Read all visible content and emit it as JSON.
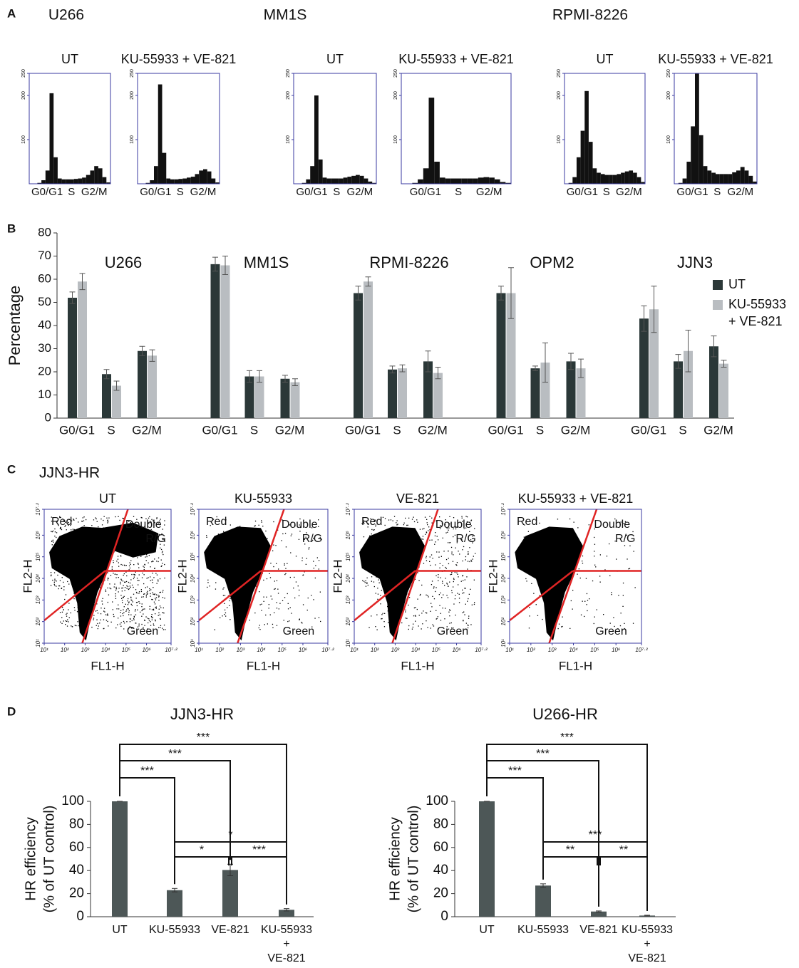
{
  "chart_data": [
    {
      "type": "histogram",
      "panel": "A",
      "bins": [
        0,
        12,
        24,
        36,
        48,
        60,
        72,
        84,
        96,
        108,
        120,
        132,
        144,
        156,
        168,
        180,
        192,
        204,
        216,
        228,
        240
      ],
      "ylim": [
        0,
        250
      ],
      "yticks": [
        100,
        200,
        250
      ],
      "x_labels": [
        "G0/G1",
        "S",
        "G2/M"
      ],
      "color": "#111111",
      "groups": [
        {
          "title": "U266",
          "plots": [
            {
              "name": "UT",
              "values": [
                0,
                0,
                2,
                8,
                30,
                205,
                60,
                12,
                10,
                10,
                10,
                11,
                12,
                14,
                20,
                30,
                40,
                35,
                15,
                3
              ]
            },
            {
              "name": "KU-55933 + VE-821",
              "values": [
                0,
                0,
                2,
                8,
                40,
                225,
                70,
                12,
                10,
                10,
                11,
                12,
                14,
                16,
                22,
                30,
                33,
                28,
                12,
                3
              ]
            }
          ]
        },
        {
          "title": "MM1S",
          "plots": [
            {
              "name": "UT",
              "values": [
                0,
                0,
                2,
                10,
                40,
                200,
                55,
                14,
                12,
                12,
                12,
                12,
                14,
                16,
                18,
                20,
                18,
                12,
                5,
                2
              ]
            },
            {
              "name": "KU-55933 + VE-821",
              "values": [
                0,
                0,
                2,
                10,
                35,
                195,
                50,
                14,
                12,
                12,
                12,
                12,
                12,
                12,
                14,
                15,
                14,
                10,
                4,
                2
              ]
            }
          ]
        },
        {
          "title": "RPMI-8226",
          "plots": [
            {
              "name": "UT",
              "values": [
                0,
                2,
                15,
                60,
                120,
                210,
                95,
                35,
                25,
                22,
                20,
                20,
                20,
                22,
                25,
                28,
                30,
                25,
                15,
                4
              ]
            },
            {
              "name": "KU-55933 + VE-821",
              "values": [
                0,
                2,
                12,
                50,
                130,
                250,
                110,
                40,
                30,
                25,
                22,
                22,
                22,
                22,
                26,
                30,
                38,
                30,
                18,
                5
              ]
            }
          ]
        }
      ]
    },
    {
      "type": "bar",
      "panel": "B",
      "ylabel": "Percentage",
      "ylim": [
        0,
        80
      ],
      "yticks": [
        0,
        10,
        20,
        30,
        40,
        50,
        60,
        70,
        80
      ],
      "groups": [
        "U266",
        "MM1S",
        "RPMI-8226",
        "OPM2",
        "JJN3"
      ],
      "categories": [
        "G0/G1",
        "S",
        "G2/M",
        "G0/G1",
        "S",
        "G2/M",
        "G0/G1",
        "S",
        "G2/M",
        "G0/G1",
        "S",
        "G2/M",
        "G0/G1",
        "S",
        "G2/M"
      ],
      "legend": "right",
      "series": [
        {
          "name": "UT",
          "color": "#2b3838",
          "values": [
            52,
            19,
            29,
            66.5,
            18,
            17,
            54,
            21,
            24.5,
            54,
            21.5,
            24.5,
            43,
            24.5,
            31
          ],
          "errors": [
            2.5,
            2,
            2,
            3,
            2.5,
            1.5,
            3,
            1.5,
            4.5,
            3,
            1,
            3.5,
            5.5,
            3,
            4.5
          ]
        },
        {
          "name": "KU-55933 + VE-821",
          "color": "#b9bdc1",
          "values": [
            59,
            14,
            27,
            66,
            18,
            15.5,
            59,
            21.5,
            19.5,
            54,
            24,
            21.5,
            47,
            29,
            23.5
          ],
          "errors": [
            3.5,
            2,
            2.5,
            4,
            2.5,
            1.5,
            2,
            1.5,
            2.5,
            11,
            8.5,
            4,
            10,
            9,
            1.5
          ]
        }
      ]
    },
    {
      "type": "scatter",
      "panel": "C",
      "title": "JJN3-HR",
      "xlabel": "FL1-H",
      "ylabel": "FL2-H",
      "log": true,
      "xlim": [
        10,
        15848931.92
      ],
      "ylim": [
        10,
        15848931.92
      ],
      "xticks": [
        {
          "value": 10,
          "label": "10¹"
        },
        {
          "value": 100,
          "label": "10²"
        },
        {
          "value": 1000,
          "label": "10³"
        },
        {
          "value": 10000,
          "label": "10⁴"
        },
        {
          "value": 100000,
          "label": "10⁵"
        },
        {
          "value": 1000000,
          "label": "10⁶"
        },
        {
          "value": 15848931.92,
          "label": "10⁷·²"
        }
      ],
      "yticks": [
        {
          "value": 10,
          "label": "10¹"
        },
        {
          "value": 100,
          "label": "10²"
        },
        {
          "value": 1000,
          "label": "10³"
        },
        {
          "value": 10000,
          "label": "10⁴"
        },
        {
          "value": 100000,
          "label": "10⁵"
        },
        {
          "value": 1000000,
          "label": "10⁶"
        },
        {
          "value": 15848931.92,
          "label": "10⁷·²"
        }
      ],
      "quadrant_labels": [
        "Red",
        "Double R/G",
        "Green"
      ],
      "gate_color": "#e02424",
      "color": "#000000",
      "plots": [
        "UT",
        "KU-55933",
        "VE-821",
        "KU-55933 + VE-821"
      ]
    },
    {
      "type": "sigbar",
      "panel": "D",
      "title": "JJN3-HR",
      "ylabel": [
        "HR efficiency",
        "(% of UT control)"
      ],
      "ylim": [
        0,
        100
      ],
      "yticks": [
        0,
        20,
        40,
        60,
        80,
        100
      ],
      "color": "#4d5757",
      "categories": [
        "UT",
        "KU-55933",
        "VE-821",
        "KU-55933 + VE-821"
      ],
      "values": [
        100,
        23,
        40.5,
        6
      ],
      "errors": [
        0,
        1.5,
        5,
        1
      ],
      "significance": [
        {
          "pair": [
            "UT",
            "KU-55933"
          ],
          "label": "***"
        },
        {
          "pair": [
            "UT",
            "VE-821"
          ],
          "label": "***"
        },
        {
          "pair": [
            "UT",
            "KU-55933 + VE-821"
          ],
          "label": "***"
        },
        {
          "pair": [
            "KU-55933",
            "VE-821"
          ],
          "label": "*"
        },
        {
          "pair": [
            "VE-821",
            "KU-55933 + VE-821"
          ],
          "label": "***"
        },
        {
          "pair": [
            "KU-55933",
            "KU-55933 + VE-821"
          ],
          "label": "*"
        }
      ]
    },
    {
      "type": "sigbar",
      "title": "U266-HR",
      "ylabel": [
        "HR efficiency",
        "(% of UT control)"
      ],
      "ylim": [
        0,
        100
      ],
      "yticks": [
        0,
        20,
        40,
        60,
        80,
        100
      ],
      "color": "#4d5757",
      "categories": [
        "UT",
        "KU-55933",
        "VE-821",
        "KU-55933 + VE-821"
      ],
      "values": [
        100,
        27,
        4.5,
        1
      ],
      "errors": [
        0,
        1.5,
        0.5,
        0.3
      ],
      "significance": [
        {
          "pair": [
            "UT",
            "KU-55933"
          ],
          "label": "***"
        },
        {
          "pair": [
            "UT",
            "VE-821"
          ],
          "label": "***"
        },
        {
          "pair": [
            "UT",
            "KU-55933 + VE-821"
          ],
          "label": "***"
        },
        {
          "pair": [
            "KU-55933",
            "VE-821"
          ],
          "label": "**"
        },
        {
          "pair": [
            "VE-821",
            "KU-55933 + VE-821"
          ],
          "label": "**"
        },
        {
          "pair": [
            "KU-55933",
            "KU-55933 + VE-821"
          ],
          "label": "***"
        }
      ]
    }
  ]
}
